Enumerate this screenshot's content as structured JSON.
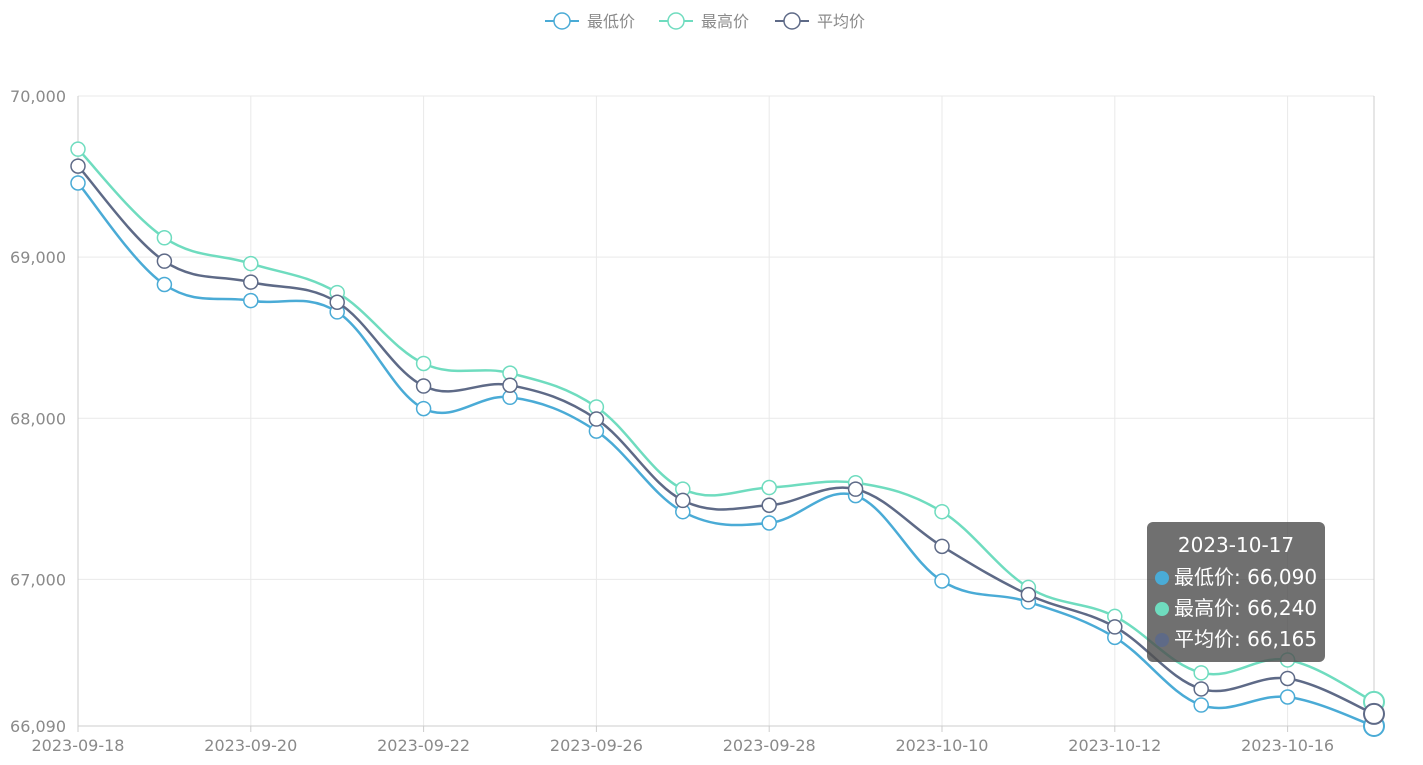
{
  "chart_data": {
    "type": "line",
    "smooth": true,
    "categories": [
      "2023-09-18",
      "2023-09-19",
      "2023-09-20",
      "2023-09-21",
      "2023-09-22",
      "2023-09-25",
      "2023-09-26",
      "2023-09-27",
      "2023-09-28",
      "2023-10-09",
      "2023-10-10",
      "2023-10-11",
      "2023-10-12",
      "2023-10-13",
      "2023-10-16",
      "2023-10-17"
    ],
    "x_tick_labels": [
      "2023-09-18",
      "2023-09-20",
      "2023-09-22",
      "2023-09-26",
      "2023-09-28",
      "2023-10-10",
      "2023-10-12",
      "2023-10-16"
    ],
    "series": [
      {
        "name": "最低价",
        "color": "#4aabd6",
        "values": [
          69460,
          68830,
          68730,
          68660,
          68060,
          68130,
          67920,
          67420,
          67350,
          67520,
          66990,
          66860,
          66640,
          66220,
          66270,
          66090
        ]
      },
      {
        "name": "最高价",
        "color": "#6fdcbf",
        "values": [
          69670,
          69120,
          68960,
          68780,
          68340,
          68280,
          68070,
          67560,
          67570,
          67600,
          67420,
          66950,
          66770,
          66420,
          66500,
          66240
        ]
      },
      {
        "name": "平均价",
        "color": "#5e6a87",
        "values": [
          69565,
          68975,
          68845,
          68720,
          68200,
          68205,
          67995,
          67490,
          67460,
          67560,
          67205,
          66905,
          66705,
          66320,
          66385,
          66165
        ]
      }
    ],
    "y_ticks": [
      "70,000",
      "69,000",
      "68,000",
      "67,000",
      "66,090"
    ],
    "ylim": [
      66090,
      70000
    ],
    "grid": true,
    "legend_position": "top-center"
  },
  "tooltip": {
    "title": "2023-10-17",
    "rows": [
      {
        "label": "最低价: 66,090",
        "color": "#4aabd6"
      },
      {
        "label": "最高价: 66,240",
        "color": "#6fdcbf"
      },
      {
        "label": "平均价: 66,165",
        "color": "#5e6a87"
      }
    ]
  }
}
